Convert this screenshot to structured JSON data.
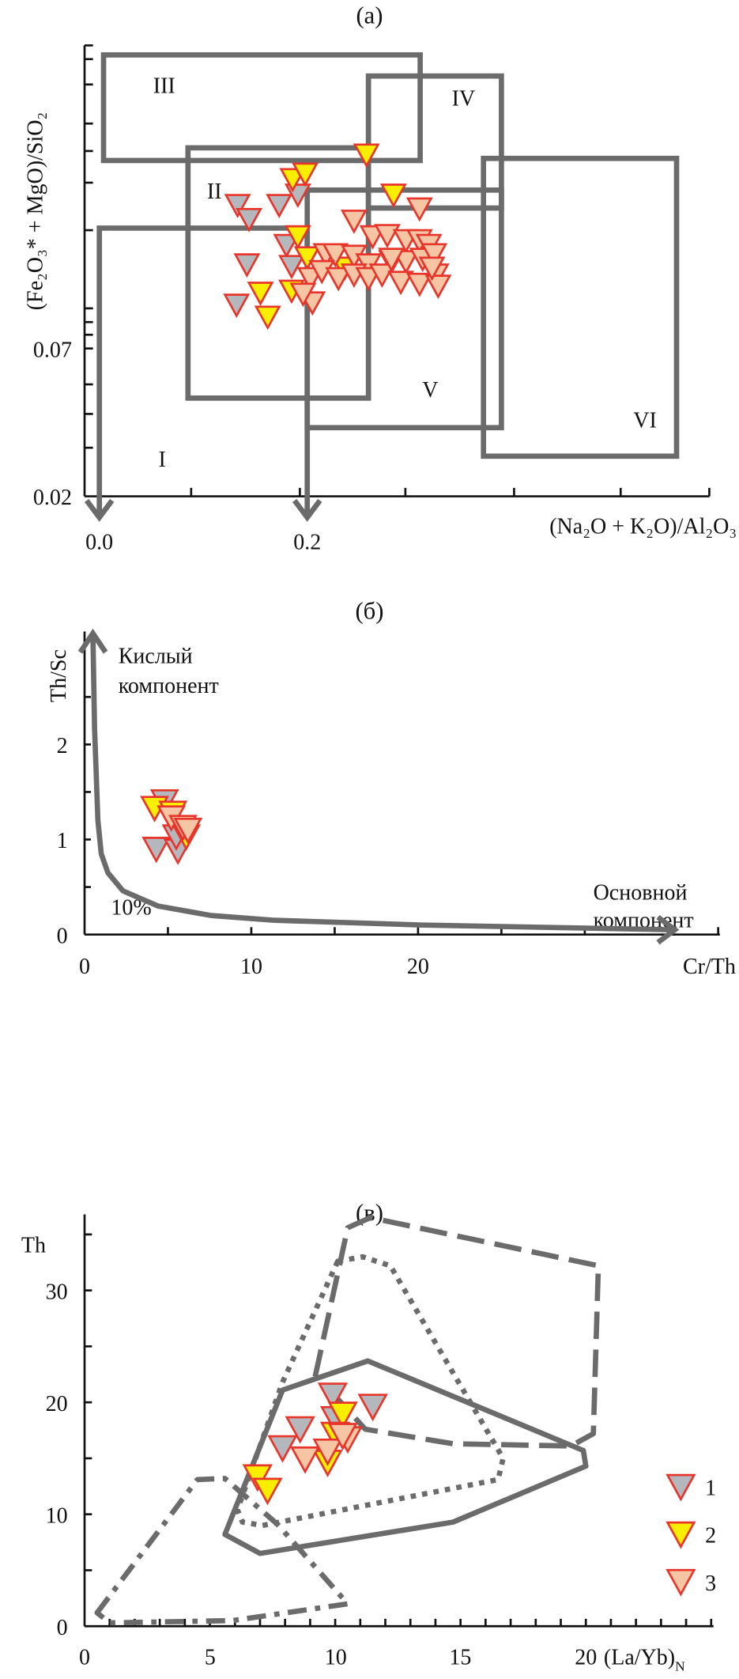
{
  "chart_data": [
    {
      "panel": "(a)",
      "type": "scatter",
      "title": "(a)",
      "xlabel": "(Na₂O + K₂O)/Al₂O₃",
      "ylabel": "(Fe₂O₃* + MgO)/SiO₂",
      "x_ticks": [
        "0.0",
        "0.2"
      ],
      "y_ticks": [
        "0.07",
        "0.02"
      ],
      "y_scale": "log",
      "regions": [
        "I",
        "II",
        "III",
        "IV",
        "V",
        "VI"
      ],
      "series": [
        {
          "name": "1",
          "points": [
            [
              0.133,
              0.24
            ],
            [
              0.144,
              0.213
            ],
            [
              0.173,
              0.24
            ],
            [
              0.191,
              0.262
            ],
            [
              0.18,
              0.171
            ],
            [
              0.142,
              0.145
            ],
            [
              0.185,
              0.143
            ],
            [
              0.132,
              0.103
            ]
          ]
        },
        {
          "name": "2",
          "points": [
            [
              0.186,
              0.299
            ],
            [
              0.198,
              0.313
            ],
            [
              0.257,
              0.368
            ],
            [
              0.283,
              0.262
            ],
            [
              0.191,
              0.184
            ],
            [
              0.2,
              0.154
            ],
            [
              0.155,
              0.114
            ],
            [
              0.162,
              0.093
            ],
            [
              0.185,
              0.116
            ],
            [
              0.236,
              0.141
            ]
          ]
        },
        {
          "name": "3",
          "points": [
            [
              0.245,
              0.21
            ],
            [
              0.308,
              0.233
            ],
            [
              0.263,
              0.184
            ],
            [
              0.277,
              0.186
            ],
            [
              0.295,
              0.178
            ],
            [
              0.308,
              0.178
            ],
            [
              0.317,
              0.171
            ],
            [
              0.218,
              0.158
            ],
            [
              0.227,
              0.158
            ],
            [
              0.245,
              0.156
            ],
            [
              0.259,
              0.145
            ],
            [
              0.281,
              0.149
            ],
            [
              0.295,
              0.149
            ],
            [
              0.311,
              0.152
            ],
            [
              0.322,
              0.158
            ],
            [
              0.203,
              0.129
            ],
            [
              0.214,
              0.137
            ],
            [
              0.23,
              0.129
            ],
            [
              0.245,
              0.133
            ],
            [
              0.259,
              0.129
            ],
            [
              0.272,
              0.133
            ],
            [
              0.29,
              0.125
            ],
            [
              0.308,
              0.123
            ],
            [
              0.324,
              0.133
            ],
            [
              0.326,
              0.121
            ],
            [
              0.205,
              0.105
            ],
            [
              0.196,
              0.113
            ],
            [
              0.281,
              0.152
            ],
            [
              0.32,
              0.141
            ]
          ]
        }
      ]
    },
    {
      "panel": "(б)",
      "type": "scatter",
      "title": "(б)",
      "xlabel": "Cr/Th",
      "ylabel": "Th/Sc",
      "x_ticks": [
        "0",
        "10",
        "20"
      ],
      "y_ticks": [
        "0",
        "1",
        "2"
      ],
      "xlim": [
        0,
        38
      ],
      "ylim": [
        0,
        3.2
      ],
      "annotations": {
        "acid": [
          "Кислый",
          "компонент"
        ],
        "basic": [
          "Основной",
          "компонент"
        ],
        "percent": "10%"
      },
      "mixing_curve": [
        [
          0.5,
          3.17
        ],
        [
          0.6,
          2.17
        ],
        [
          0.8,
          1.2
        ],
        [
          1.0,
          0.85
        ],
        [
          1.4,
          0.65
        ],
        [
          2.3,
          0.46
        ],
        [
          4.4,
          0.3
        ],
        [
          7.6,
          0.2
        ],
        [
          11.4,
          0.15
        ],
        [
          20.3,
          0.1
        ],
        [
          35.4,
          0.05
        ]
      ],
      "series": [
        {
          "name": "1",
          "points": [
            [
              4.8,
              1.42
            ],
            [
              4.3,
              0.92
            ],
            [
              5.6,
              0.9
            ],
            [
              5.5,
              1.05
            ]
          ]
        },
        {
          "name": "2",
          "points": [
            [
              4.2,
              1.35
            ],
            [
              5.3,
              1.3
            ],
            [
              6.1,
              1.05
            ]
          ]
        },
        {
          "name": "3",
          "points": [
            [
              5.2,
              1.25
            ],
            [
              5.9,
              1.15
            ],
            [
              6.2,
              1.12
            ]
          ]
        }
      ]
    },
    {
      "panel": "(в)",
      "type": "scatter",
      "title": "(в)",
      "xlabel": "(La/Yb)",
      "xlabel_sub": "N",
      "ylabel": "Th",
      "x_ticks": [
        "0",
        "5",
        "10",
        "15",
        "20"
      ],
      "y_ticks": [
        "0",
        "10",
        "20",
        "30"
      ],
      "xlim": [
        0,
        25
      ],
      "ylim": [
        0,
        37
      ],
      "fields": [
        {
          "style": "dashed",
          "closed": false,
          "points": [
            [
              9.2,
              22.3
            ],
            [
              10.5,
              35.6
            ],
            [
              11.4,
              36.5
            ],
            [
              20.5,
              32.2
            ],
            [
              20.3,
              17.2
            ],
            [
              19.4,
              16.1
            ],
            [
              14.7,
              16.3
            ],
            [
              11.2,
              17.6
            ],
            [
              9.7,
              21.3
            ]
          ]
        },
        {
          "style": "dotted",
          "closed": true,
          "points": [
            [
              10.1,
              32.6
            ],
            [
              11.1,
              33.0
            ],
            [
              12.2,
              32.2
            ],
            [
              16.7,
              15.0
            ],
            [
              16.5,
              13.1
            ],
            [
              7.1,
              9.0
            ],
            [
              6.3,
              9.3
            ],
            [
              6.1,
              10.4
            ],
            [
              7.9,
              21.8
            ]
          ]
        },
        {
          "style": "solid",
          "closed": true,
          "points": [
            [
              7.9,
              21.1
            ],
            [
              11.3,
              23.7
            ],
            [
              19.9,
              15.7
            ],
            [
              20.0,
              14.3
            ],
            [
              14.7,
              9.3
            ],
            [
              7.0,
              6.5
            ],
            [
              5.6,
              8.2
            ]
          ]
        },
        {
          "style": "dashdot",
          "closed": true,
          "points": [
            [
              0.5,
              1.2
            ],
            [
              4.5,
              13.1
            ],
            [
              5.6,
              13.2
            ],
            [
              7.7,
              9.1
            ],
            [
              10.5,
              2.0
            ],
            [
              5.9,
              0.5
            ],
            [
              1.0,
              0.3
            ]
          ]
        }
      ],
      "series": [
        {
          "name": "1",
          "points": [
            [
              9.9,
              20.8
            ],
            [
              11.5,
              19.8
            ],
            [
              8.6,
              17.8
            ],
            [
              7.9,
              16.1
            ],
            [
              10.0,
              18.7
            ]
          ]
        },
        {
          "name": "2",
          "points": [
            [
              10.3,
              19.1
            ],
            [
              10.0,
              17.3
            ],
            [
              9.7,
              14.8
            ],
            [
              6.9,
              13.5
            ],
            [
              7.3,
              12.3
            ]
          ]
        },
        {
          "name": "3",
          "points": [
            [
              10.5,
              16.9
            ],
            [
              8.8,
              15.1
            ],
            [
              9.7,
              15.8
            ],
            [
              10.3,
              17.2
            ]
          ]
        }
      ]
    }
  ],
  "legend": {
    "items": [
      "1",
      "2",
      "3"
    ],
    "placement": "right"
  },
  "colors": {
    "1": "#b4b7bc",
    "2": "#f7ee00",
    "3": "#f6c5a3",
    "marker_stroke": "#e8352b",
    "field": "#6b6b6b"
  }
}
